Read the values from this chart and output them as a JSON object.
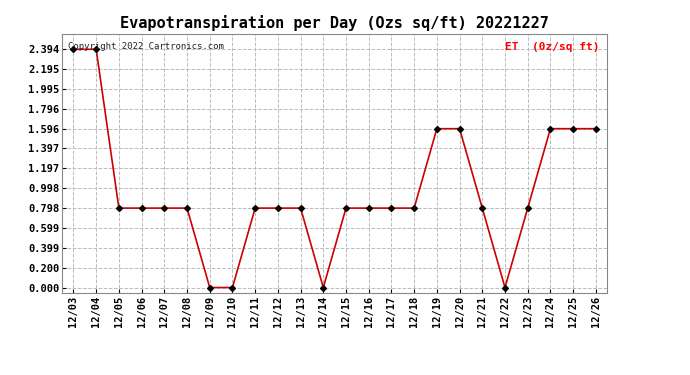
{
  "title": "Evapotranspiration per Day (Ozs sq/ft) 20221227",
  "legend_label": "ET  (0z/sq ft)",
  "copyright_text": "Copyright 2022 Cartronics.com",
  "dates": [
    "12/03",
    "12/04",
    "12/05",
    "12/06",
    "12/07",
    "12/08",
    "12/09",
    "12/10",
    "12/11",
    "12/12",
    "12/13",
    "12/14",
    "12/15",
    "12/16",
    "12/17",
    "12/18",
    "12/19",
    "12/20",
    "12/21",
    "12/22",
    "12/23",
    "12/24",
    "12/25",
    "12/26"
  ],
  "values": [
    2.394,
    2.394,
    0.798,
    0.798,
    0.798,
    0.798,
    0.0,
    0.0,
    0.798,
    0.798,
    0.798,
    0.0,
    0.798,
    0.798,
    0.798,
    0.798,
    1.596,
    1.596,
    0.798,
    0.0,
    0.798,
    1.596,
    1.596,
    1.596
  ],
  "line_color": "#cc0000",
  "marker_color": "#000000",
  "marker_style": "D",
  "marker_size": 3,
  "line_width": 1.2,
  "ylim": [
    -0.05,
    2.55
  ],
  "yticks": [
    0.0,
    0.2,
    0.399,
    0.599,
    0.798,
    0.998,
    1.197,
    1.397,
    1.596,
    1.796,
    1.995,
    2.195,
    2.394
  ],
  "grid_color": "#bbbbbb",
  "grid_style": "--",
  "background_color": "#ffffff",
  "title_fontsize": 11,
  "tick_fontsize": 7.5,
  "legend_fontsize": 8,
  "copyright_fontsize": 6.5
}
